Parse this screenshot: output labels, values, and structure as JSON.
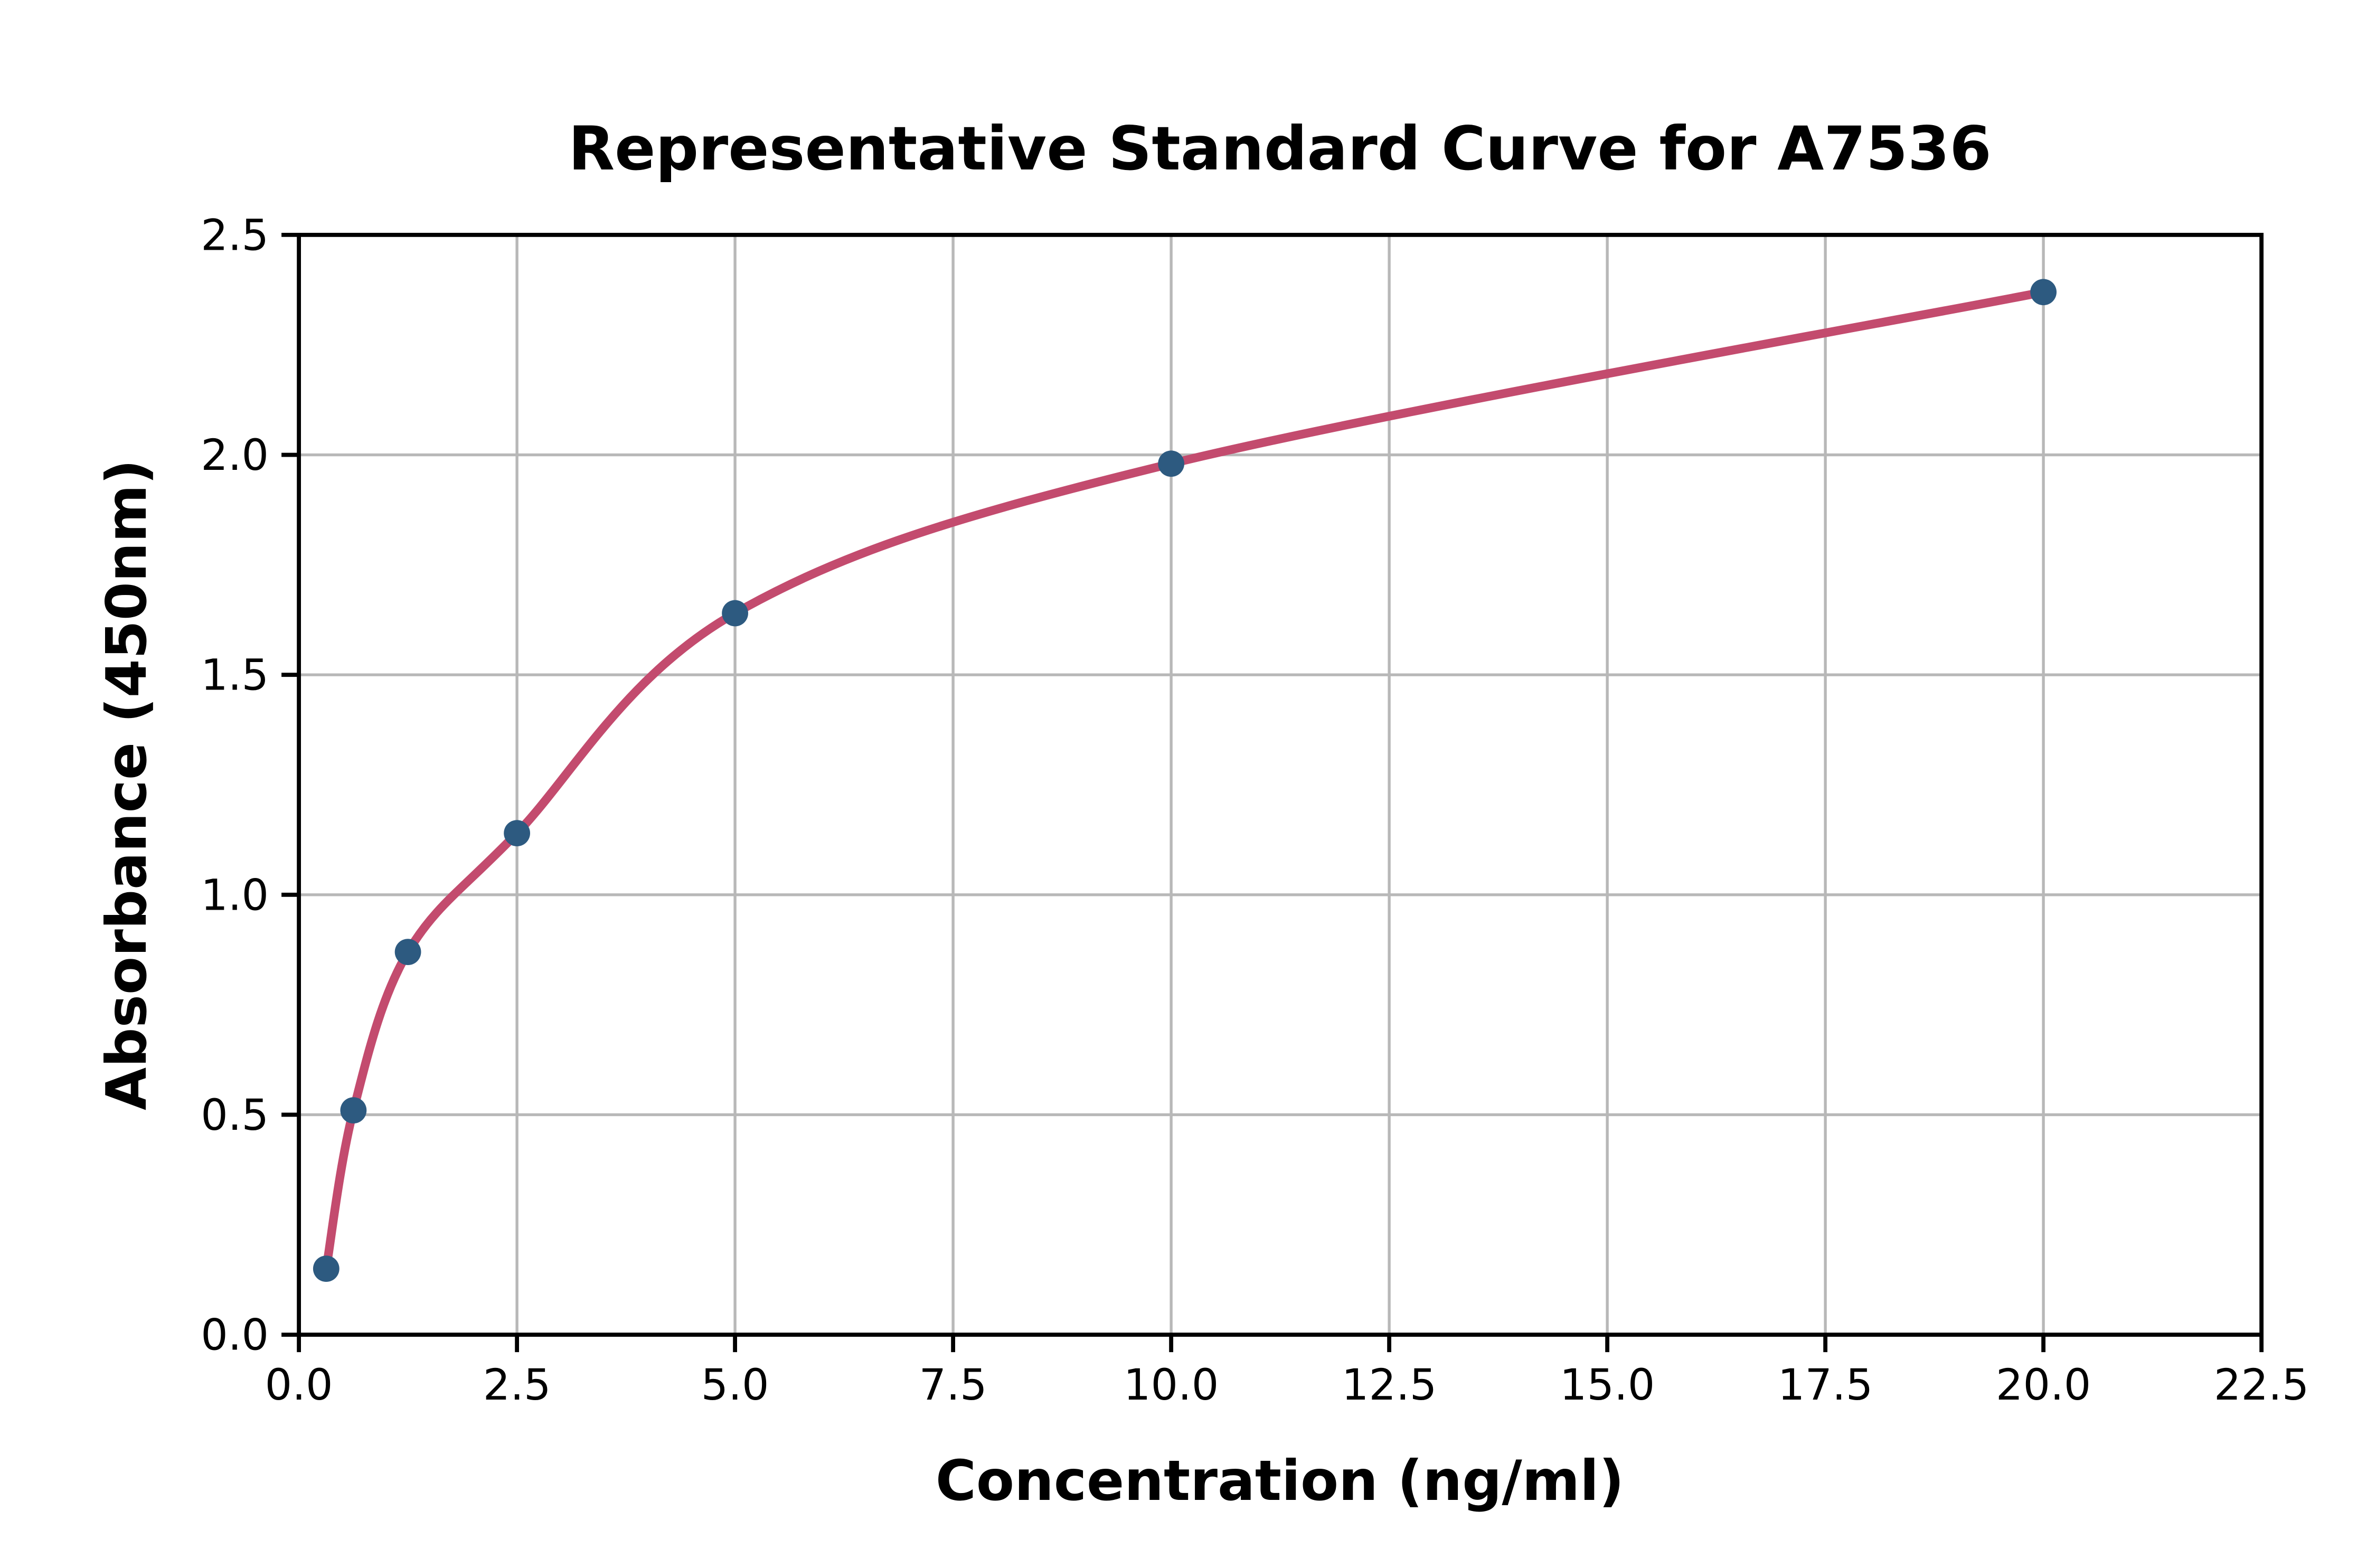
{
  "page": {
    "background": "#ffffff"
  },
  "chart_data": {
    "type": "scatter",
    "title": "Representative Standard Curve for A7536",
    "xlabel": "Concentration (ng/ml)",
    "ylabel": "Absorbance (450nm)",
    "xlim": [
      0,
      22.5
    ],
    "ylim": [
      0,
      2.5
    ],
    "x_ticks": [
      0,
      2.5,
      5,
      7.5,
      10,
      12.5,
      15,
      17.5,
      20,
      22.5
    ],
    "x_tick_labels": [
      "0.0",
      "2.5",
      "5.0",
      "7.5",
      "10.0",
      "12.5",
      "15.0",
      "17.5",
      "20.0",
      "22.5"
    ],
    "y_ticks": [
      0,
      0.5,
      1,
      1.5,
      2,
      2.5
    ],
    "y_tick_labels": [
      "0.0",
      "0.5",
      "1.0",
      "1.5",
      "2.0",
      "2.5"
    ],
    "grid": true,
    "legend": null,
    "series": [
      {
        "name": "standard-points",
        "type": "scatter",
        "x": [
          0.313,
          0.625,
          1.25,
          2.5,
          5,
          10,
          20
        ],
        "y": [
          0.15,
          0.51,
          0.87,
          1.14,
          1.64,
          1.98,
          2.37
        ],
        "color": "#2d5a80"
      },
      {
        "name": "fitted-curve",
        "type": "line",
        "x": [
          0.313,
          0.625,
          1.25,
          2.5,
          5,
          10,
          20
        ],
        "y": [
          0.15,
          0.51,
          0.87,
          1.14,
          1.64,
          1.98,
          2.37
        ],
        "color": "#c34b6e"
      }
    ]
  },
  "style": {
    "background": "#ffffff",
    "grid_color": "#b8b8b8",
    "axis_color": "#000000",
    "text_color": "#000000",
    "point_color": "#2d5a80",
    "curve_color": "#c34b6e"
  }
}
